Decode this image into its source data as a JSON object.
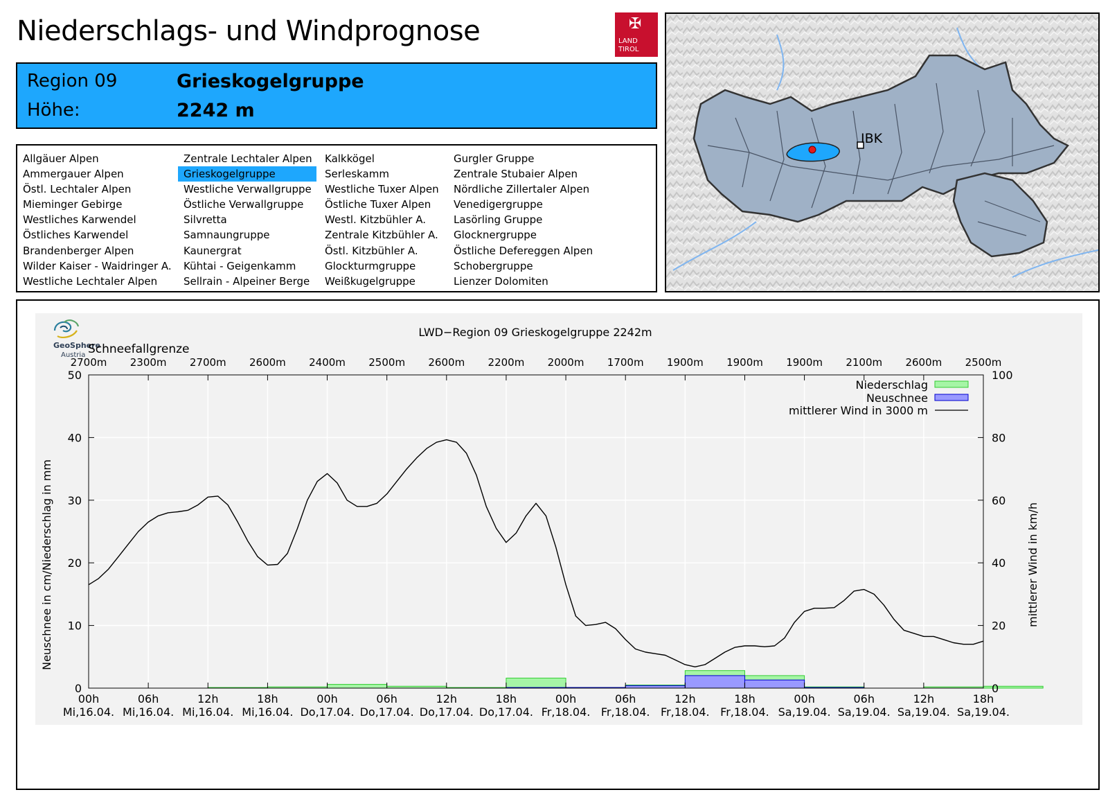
{
  "header": {
    "title": "Niederschlags- und Windprognose"
  },
  "logo": {
    "line1": "LAND",
    "line2": "TIROL"
  },
  "region": {
    "label": "Region 09",
    "name": "Grieskogelgruppe",
    "height_label": "Höhe:",
    "height_value": "2242 m"
  },
  "region_list": {
    "selected": "Grieskogelgruppe",
    "columns": [
      [
        "Allgäuer Alpen",
        "Ammergauer Alpen",
        "Östl. Lechtaler Alpen",
        "Mieminger Gebirge",
        "Westliches Karwendel",
        "Östliches Karwendel",
        "Brandenberger Alpen",
        "Wilder Kaiser - Waidringer A.",
        "Westliche Lechtaler Alpen"
      ],
      [
        "Zentrale Lechtaler Alpen",
        "Grieskogelgruppe",
        "Westliche Verwallgruppe",
        "Östliche Verwallgruppe",
        "Silvretta",
        "Samnaungruppe",
        "Kaunergrat",
        "Kühtai - Geigenkamm",
        "Sellrain - Alpeiner Berge"
      ],
      [
        "Kalkkögel",
        "Serleskamm",
        "Westliche Tuxer Alpen",
        "Östliche Tuxer Alpen",
        "Westl. Kitzbühler A.",
        "Zentrale Kitzbühler A.",
        "Östl. Kitzbühler A.",
        "Glockturmgruppe",
        "Weißkugelgruppe"
      ],
      [
        "Gurgler Gruppe",
        "Zentrale Stubaier Alpen",
        "Nördliche Zillertaler Alpen",
        "Venedigergruppe",
        "Lasörling Gruppe",
        "Glocknergruppe",
        "Östliche Defereggen Alpen",
        "Schobergruppe",
        "Lienzer Dolomiten"
      ]
    ]
  },
  "map": {
    "city_label": "IBK"
  },
  "provider": {
    "name": "GeoSphere",
    "sub": "Austria"
  },
  "colors": {
    "region_blue": "#1ea7fd",
    "precip_fill": "#a6f5a6",
    "precip_edge": "#33cc33",
    "snow_fill": "#9999ff",
    "snow_edge": "#0000cc",
    "wind_line": "#000000"
  },
  "chart_data": {
    "type": "bar+line",
    "title": "LWD−Region 09 Grieskogelgruppe 2242m",
    "snowline_label": "Schneefallgrenze",
    "snowline": [
      "2700m",
      "2300m",
      "2700m",
      "2600m",
      "2400m",
      "2500m",
      "2600m",
      "2200m",
      "2000m",
      "1700m",
      "1900m",
      "1900m",
      "1900m",
      "2100m",
      "2600m",
      "2500m"
    ],
    "x_ticks": [
      {
        "hour": "00h",
        "date": "Mi,16.04."
      },
      {
        "hour": "06h",
        "date": "Mi,16.04."
      },
      {
        "hour": "12h",
        "date": "Mi,16.04."
      },
      {
        "hour": "18h",
        "date": "Mi,16.04."
      },
      {
        "hour": "00h",
        "date": "Do,17.04."
      },
      {
        "hour": "06h",
        "date": "Do,17.04."
      },
      {
        "hour": "12h",
        "date": "Do,17.04."
      },
      {
        "hour": "18h",
        "date": "Do,17.04."
      },
      {
        "hour": "00h",
        "date": "Fr,18.04."
      },
      {
        "hour": "06h",
        "date": "Fr,18.04."
      },
      {
        "hour": "12h",
        "date": "Fr,18.04."
      },
      {
        "hour": "18h",
        "date": "Fr,18.04."
      },
      {
        "hour": "00h",
        "date": "Sa,19.04."
      },
      {
        "hour": "06h",
        "date": "Sa,19.04."
      },
      {
        "hour": "12h",
        "date": "Sa,19.04."
      },
      {
        "hour": "18h",
        "date": "Sa,19.04."
      }
    ],
    "x_range_hours": [
      0,
      90
    ],
    "ylabel_left": "Neuschnee in cm/Niederschlag in mm",
    "ylabel_right": "mittlerer Wind in km/h",
    "ylim_left": [
      0,
      50
    ],
    "ylim_right": [
      0,
      100
    ],
    "yticks_left": [
      0,
      10,
      20,
      30,
      40,
      50
    ],
    "yticks_right": [
      0,
      20,
      40,
      60,
      80,
      100
    ],
    "grid": true,
    "legend": {
      "placement": "top-right",
      "entries": [
        "Niederschlag",
        "Neuschnee",
        "mittlerer Wind in 3000 m"
      ]
    },
    "bar_width_hours": 6,
    "precipitation_mm": [
      0.0,
      0.0,
      0.1,
      0.2,
      0.6,
      0.3,
      0.1,
      1.6,
      0.1,
      0.5,
      2.8,
      2.0,
      0.2,
      0.0,
      0.2,
      0.3
    ],
    "new_snow_cm": [
      0.0,
      0.0,
      0.0,
      0.0,
      0.0,
      0.0,
      0.0,
      0.1,
      0.1,
      0.4,
      2.0,
      1.3,
      0.1,
      0.0,
      0.0,
      0.0
    ],
    "wind_kmh": {
      "hours": [
        0,
        1,
        2,
        3,
        4,
        5,
        6,
        7,
        8,
        9,
        10,
        11,
        12,
        13,
        14,
        15,
        16,
        17,
        18,
        19,
        20,
        21,
        22,
        23,
        24,
        25,
        26,
        27,
        28,
        29,
        30,
        31,
        32,
        33,
        34,
        35,
        36,
        37,
        38,
        39,
        40,
        41,
        42,
        43,
        44,
        45,
        46,
        47,
        48,
        49,
        50,
        51,
        52,
        53,
        54,
        55,
        56,
        57,
        58,
        59,
        60,
        61,
        62,
        63,
        64,
        65,
        66,
        67,
        68,
        69,
        70,
        71,
        72,
        73,
        74,
        75,
        76,
        77,
        78,
        79,
        80,
        81,
        82,
        83,
        84,
        85,
        86,
        87,
        88,
        89,
        90
      ],
      "values": [
        33,
        35,
        38,
        42,
        46,
        50,
        53,
        55,
        56,
        56.3,
        56.8,
        58.5,
        61,
        61.3,
        58.5,
        53,
        47,
        42,
        39.3,
        39.5,
        43,
        51,
        60,
        66,
        68.5,
        65.5,
        60,
        58,
        58,
        59,
        62,
        66,
        70,
        73.5,
        76.5,
        78.5,
        79.3,
        78.5,
        75,
        68,
        58,
        51,
        46.5,
        49.5,
        55,
        59,
        55,
        45,
        33,
        23,
        20,
        20.3,
        21,
        19,
        15.5,
        12.5,
        11.5,
        11,
        10.5,
        9,
        7.5,
        6.8,
        7.5,
        9.5,
        11.5,
        13,
        13.5,
        13.5,
        13.2,
        13.5,
        16,
        21,
        24.5,
        25.5,
        25.5,
        25.7,
        28,
        31,
        31.5,
        30,
        26.5,
        22,
        18.5,
        17.5,
        16.5,
        16.5,
        15.5,
        14.5,
        14,
        14,
        15
      ]
    }
  }
}
